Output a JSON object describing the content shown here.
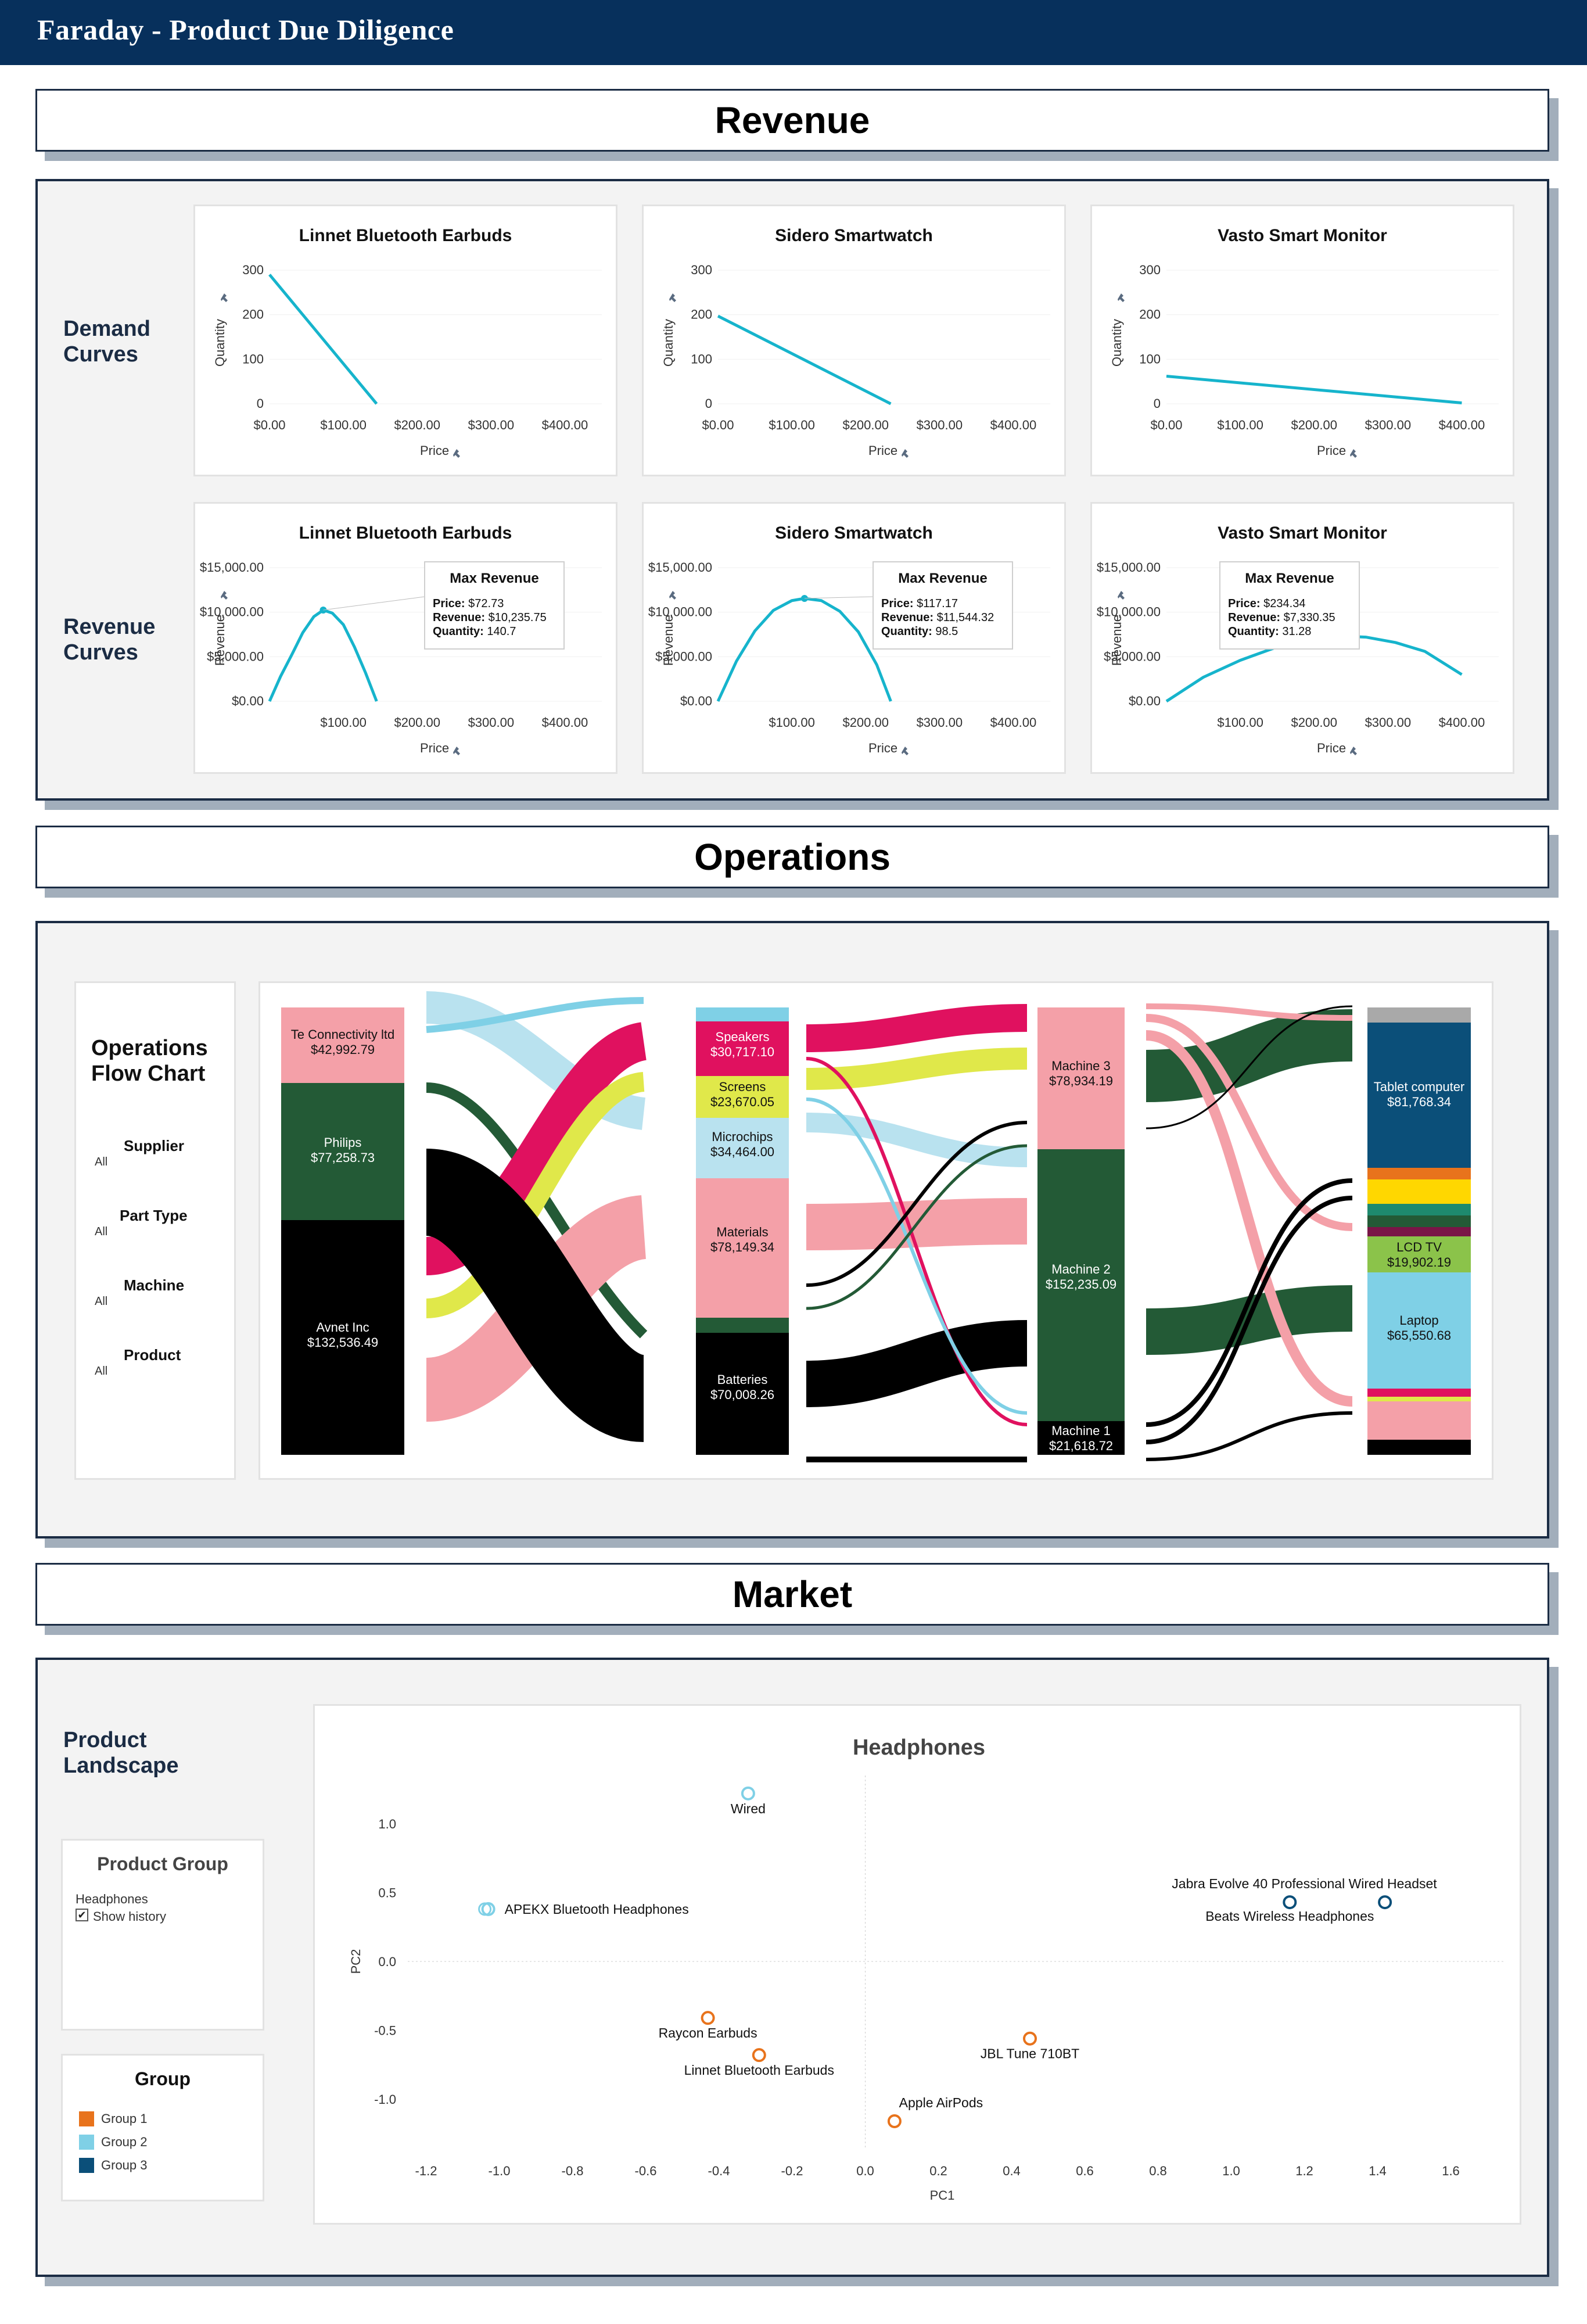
{
  "app_title": "Faraday - Product Due Diligence",
  "sections": {
    "revenue": "Revenue",
    "operations": "Operations",
    "market": "Market"
  },
  "revenue": {
    "demand_label": "Demand\nCurves",
    "revenue_label": "Revenue\nCurves",
    "demand_charts": [
      {
        "title": "Linnet Bluetooth Earbuds",
        "ylabel": "Quantity",
        "xlabel": "Price",
        "y_ticks": [
          "300",
          "200",
          "100",
          "0"
        ],
        "x_ticks": [
          "$0.00",
          "$100.00",
          "$200.00",
          "$300.00",
          "$400.00"
        ]
      },
      {
        "title": "Sidero Smartwatch",
        "ylabel": "Quantity",
        "xlabel": "Price",
        "y_ticks": [
          "300",
          "200",
          "100",
          "0"
        ],
        "x_ticks": [
          "$0.00",
          "$100.00",
          "$200.00",
          "$300.00",
          "$400.00"
        ]
      },
      {
        "title": "Vasto Smart Monitor",
        "ylabel": "Quantity",
        "xlabel": "Price",
        "y_ticks": [
          "300",
          "200",
          "100",
          "0"
        ],
        "x_ticks": [
          "$0.00",
          "$100.00",
          "$200.00",
          "$300.00",
          "$400.00"
        ]
      }
    ],
    "revenue_charts": [
      {
        "title": "Linnet Bluetooth Earbuds",
        "ylabel": "Revenue",
        "xlabel": "Price",
        "y_ticks": [
          "$15,000.00",
          "$10,000.00",
          "$5,000.00",
          "$0.00"
        ],
        "x_ticks": [
          "$100.00",
          "$200.00",
          "$300.00",
          "$400.00"
        ],
        "tooltip": {
          "title": "Max Revenue",
          "price_label": "Price:",
          "price": "$72.73",
          "revenue_label": "Revenue:",
          "revenue": "$10,235.75",
          "quantity_label": "Quantity:",
          "quantity": "140.7"
        }
      },
      {
        "title": "Sidero Smartwatch",
        "ylabel": "Revenue",
        "xlabel": "Price",
        "y_ticks": [
          "$15,000.00",
          "$10,000.00",
          "$5,000.00",
          "$0.00"
        ],
        "x_ticks": [
          "$100.00",
          "$200.00",
          "$300.00",
          "$400.00"
        ],
        "tooltip": {
          "title": "Max Revenue",
          "price_label": "Price:",
          "price": "$117.17",
          "revenue_label": "Revenue:",
          "revenue": "$11,544.32",
          "quantity_label": "Quantity:",
          "quantity": "98.5"
        }
      },
      {
        "title": "Vasto Smart Monitor",
        "ylabel": "Revenue",
        "xlabel": "Price",
        "y_ticks": [
          "$15,000.00",
          "$10,000.00",
          "$5,000.00",
          "$0.00"
        ],
        "x_ticks": [
          "$100.00",
          "$200.00",
          "$300.00",
          "$400.00"
        ],
        "tooltip": {
          "title": "Max Revenue",
          "price_label": "Price:",
          "price": "$234.34",
          "revenue_label": "Revenue:",
          "revenue": "$7,330.35",
          "quantity_label": "Quantity:",
          "quantity": "31.28"
        }
      }
    ]
  },
  "operations": {
    "panel_title": "Operations\nFlow Chart",
    "filters": [
      {
        "label": "Supplier",
        "value": "All"
      },
      {
        "label": "Part Type",
        "value": "All"
      },
      {
        "label": "Machine",
        "value": "All"
      },
      {
        "label": "Product",
        "value": "All"
      }
    ],
    "suppliers": [
      {
        "name": "Te Connectivity ltd",
        "value": "$42,992.79",
        "color": "#f4a0a8"
      },
      {
        "name": "Philips",
        "value": "$77,258.73",
        "color": "#235a36"
      },
      {
        "name": "Avnet Inc",
        "value": "$132,536.49",
        "color": "#000000"
      }
    ],
    "parts": [
      {
        "name": "Speakers",
        "value": "$30,717.10",
        "color": "#e0115f"
      },
      {
        "name": "Screens",
        "value": "$23,670.05",
        "color": "#e0e84a"
      },
      {
        "name": "Microchips",
        "value": "$34,464.00",
        "color": "#b9e2ef"
      },
      {
        "name": "Materials",
        "value": "$78,149.34",
        "color": "#f4a0a8"
      },
      {
        "name": "Batteries",
        "value": "$70,008.26",
        "color": "#000000"
      }
    ],
    "machines": [
      {
        "name": "Machine 3",
        "value": "$78,934.19",
        "color": "#f4a0a8"
      },
      {
        "name": "Machine 2",
        "value": "$152,235.09",
        "color": "#235a36"
      },
      {
        "name": "Machine 1",
        "value": "$21,618.72",
        "color": "#000000"
      }
    ],
    "products": [
      {
        "name": "Tablet computer",
        "value": "$81,768.34",
        "color": "#0b5a8c"
      },
      {
        "name": "LCD TV",
        "value": "$19,902.19",
        "color": "#8bc34a"
      },
      {
        "name": "Laptop",
        "value": "$65,550.68",
        "color": "#7fd0e6"
      }
    ]
  },
  "market": {
    "panel_title": "Product\nLandscape",
    "product_group": {
      "title": "Product Group",
      "value": "Headphones",
      "checkbox_label": "Show history",
      "checked": true
    },
    "group_legend": {
      "title": "Group",
      "items": [
        {
          "name": "Group 1",
          "color": "#e8731c"
        },
        {
          "name": "Group 2",
          "color": "#7fd0e6"
        },
        {
          "name": "Group 3",
          "color": "#0b4f79"
        }
      ]
    }
  },
  "chart_data": [
    {
      "type": "line",
      "title": "Linnet Bluetooth Earbuds",
      "xlabel": "Price",
      "ylabel": "Quantity",
      "xlim": [
        0,
        450
      ],
      "ylim": [
        0,
        300
      ],
      "x": [
        0,
        145
      ],
      "y": [
        290,
        0
      ]
    },
    {
      "type": "line",
      "title": "Sidero Smartwatch",
      "xlabel": "Price",
      "ylabel": "Quantity",
      "xlim": [
        0,
        450
      ],
      "ylim": [
        0,
        300
      ],
      "x": [
        0,
        234
      ],
      "y": [
        197,
        0
      ]
    },
    {
      "type": "line",
      "title": "Vasto Smart Monitor",
      "xlabel": "Price",
      "ylabel": "Quantity",
      "xlim": [
        0,
        450
      ],
      "ylim": [
        0,
        300
      ],
      "x": [
        0,
        400
      ],
      "y": [
        62,
        2
      ]
    },
    {
      "type": "line",
      "title": "Linnet Bluetooth Earbuds",
      "xlabel": "Price",
      "ylabel": "Revenue",
      "xlim": [
        0,
        450
      ],
      "ylim": [
        0,
        15000
      ],
      "x": [
        0,
        15,
        30,
        45,
        60,
        72.73,
        85,
        100,
        115,
        130,
        145
      ],
      "y": [
        0,
        2800,
        5200,
        7700,
        9500,
        10235.75,
        9900,
        8600,
        6100,
        3200,
        0
      ],
      "marker": {
        "x": 72.73,
        "y": 10235.75
      }
    },
    {
      "type": "line",
      "title": "Sidero Smartwatch",
      "xlabel": "Price",
      "ylabel": "Revenue",
      "xlim": [
        0,
        450
      ],
      "ylim": [
        0,
        15000
      ],
      "x": [
        0,
        25,
        50,
        75,
        100,
        117.17,
        140,
        165,
        190,
        215,
        234
      ],
      "y": [
        0,
        4500,
        7900,
        10200,
        11300,
        11544.32,
        11300,
        10100,
        7800,
        4100,
        0
      ],
      "marker": {
        "x": 117.17,
        "y": 11544.32
      }
    },
    {
      "type": "line",
      "title": "Vasto Smart Monitor",
      "xlabel": "Price",
      "ylabel": "Revenue",
      "xlim": [
        0,
        450
      ],
      "ylim": [
        0,
        15000
      ],
      "x": [
        0,
        50,
        100,
        150,
        200,
        234.34,
        270,
        310,
        350,
        400
      ],
      "y": [
        0,
        2700,
        4600,
        6100,
        7050,
        7330.35,
        7200,
        6600,
        5600,
        3000
      ],
      "marker": {
        "x": 234.34,
        "y": 7330.35
      }
    },
    {
      "type": "scatter",
      "title": "Headphones",
      "xlabel": "PC1",
      "ylabel": "PC2",
      "xlim": [
        -1.25,
        1.75
      ],
      "ylim": [
        -1.35,
        1.35
      ],
      "x_ticks": [
        "-1.2",
        "-1.0",
        "-0.8",
        "-0.6",
        "-0.4",
        "-0.2",
        "0.0",
        "0.2",
        "0.4",
        "0.6",
        "0.8",
        "1.0",
        "1.2",
        "1.4",
        "1.6"
      ],
      "y_ticks": [
        "1.0",
        "0.5",
        "0.0",
        "-0.5",
        "-1.0"
      ],
      "points": [
        {
          "label": "Wired",
          "x": -0.32,
          "y": 1.22,
          "group": 2
        },
        {
          "label": "APEKX Bluetooth Headphones",
          "x": -1.03,
          "y": 0.38,
          "group": 2
        },
        {
          "label": "Jabra Evolve 40 Professional Wired Headset",
          "x": 1.16,
          "y": 0.43,
          "group": 3
        },
        {
          "label": "Beats Wireless Headphones",
          "x": 1.42,
          "y": 0.43,
          "group": 3
        },
        {
          "label": "Raycon Earbuds",
          "x": -0.43,
          "y": -0.41,
          "group": 1
        },
        {
          "label": "Linnet Bluetooth Earbuds",
          "x": -0.29,
          "y": -0.68,
          "group": 1
        },
        {
          "label": "JBL Tune 710BT",
          "x": 0.45,
          "y": -0.56,
          "group": 1
        },
        {
          "label": "Apple AirPods",
          "x": 0.08,
          "y": -1.16,
          "group": 1
        }
      ]
    }
  ]
}
